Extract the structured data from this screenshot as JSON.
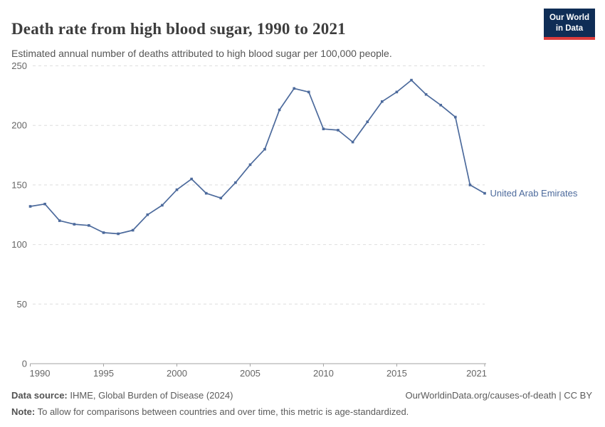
{
  "header": {
    "title": "Death rate from high blood sugar, 1990 to 2021",
    "subtitle": "Estimated annual number of deaths attributed to high blood sugar per 100,000 people.",
    "logo": {
      "line1": "Our World",
      "line2": "in Data",
      "bg_color": "#0f2d56",
      "accent_color": "#dc3c3c"
    }
  },
  "chart_data": {
    "type": "line",
    "title": "Death rate from high blood sugar, 1990 to 2021",
    "xlabel": "",
    "ylabel": "",
    "x": [
      1990,
      1991,
      1992,
      1993,
      1994,
      1995,
      1996,
      1997,
      1998,
      1999,
      2000,
      2001,
      2002,
      2003,
      2004,
      2005,
      2006,
      2007,
      2008,
      2009,
      2010,
      2011,
      2012,
      2013,
      2014,
      2015,
      2016,
      2017,
      2018,
      2019,
      2020,
      2021
    ],
    "series": [
      {
        "name": "United Arab Emirates",
        "color": "#4c6a9c",
        "values": [
          132,
          134,
          120,
          117,
          116,
          110,
          109,
          112,
          125,
          133,
          146,
          155,
          143,
          139,
          152,
          167,
          180,
          213,
          231,
          228,
          197,
          196,
          186,
          203,
          220,
          228,
          238,
          226,
          217,
          207,
          150,
          143
        ]
      }
    ],
    "ylim": [
      0,
      250
    ],
    "yticks": [
      0,
      50,
      100,
      150,
      200,
      250
    ],
    "xticks": [
      1990,
      1995,
      2000,
      2005,
      2010,
      2015,
      2021
    ],
    "grid": "horizontal-dashed",
    "legend_position": "end-of-line-label",
    "end_label": "United Arab Emirates",
    "colors": {
      "gridline": "#dedede",
      "axis": "#a3a3a3",
      "tick_label": "#666666"
    }
  },
  "footer": {
    "data_source_label": "Data source:",
    "data_source": " IHME, Global Burden of Disease (2024)",
    "link": "OurWorldinData.org/causes-of-death | CC BY",
    "note_label": "Note:",
    "note": " To allow for comparisons between countries and over time, this metric is age-standardized."
  }
}
